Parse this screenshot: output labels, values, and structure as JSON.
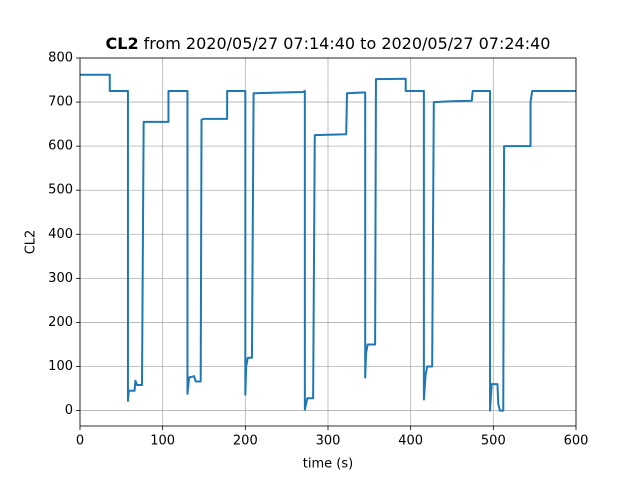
{
  "chart_data": {
    "type": "line",
    "title_bold": "CL2",
    "title": "from 2020/05/27 07:14:40 to 2020/05/27 07:24:40",
    "xlabel": "time (s)",
    "ylabel": "CL2",
    "color": "#1f77b4",
    "grid": true,
    "xlim": [
      0,
      600
    ],
    "ylim": [
      -35,
      800
    ],
    "xticks": [
      0,
      100,
      200,
      300,
      400,
      500,
      600
    ],
    "yticks": [
      0,
      100,
      200,
      300,
      400,
      500,
      600,
      700,
      800
    ],
    "x": [
      0,
      36,
      36,
      58,
      58,
      59,
      66,
      67,
      69,
      75,
      77,
      107,
      107,
      130,
      130,
      132,
      138,
      140,
      146,
      147,
      150,
      178,
      178,
      200,
      200,
      201,
      203,
      208,
      210,
      250,
      270,
      272,
      272,
      275,
      282,
      284,
      322,
      323,
      345,
      345,
      346,
      348,
      357,
      358,
      394,
      394,
      416,
      416,
      418,
      420,
      426,
      428,
      450,
      474,
      475,
      496,
      496,
      498,
      505,
      506,
      508,
      512,
      513,
      545,
      545,
      547,
      600
    ],
    "values": [
      762,
      762,
      725,
      725,
      22,
      45,
      45,
      68,
      58,
      58,
      655,
      655,
      725,
      725,
      38,
      75,
      78,
      66,
      66,
      660,
      662,
      662,
      725,
      725,
      36,
      100,
      120,
      120,
      720,
      722,
      723,
      725,
      2,
      28,
      28,
      625,
      627,
      720,
      722,
      75,
      130,
      150,
      150,
      752,
      753,
      725,
      725,
      25,
      80,
      100,
      100,
      700,
      702,
      703,
      725,
      725,
      0,
      60,
      60,
      15,
      0,
      0,
      600,
      600,
      700,
      725,
      725
    ]
  }
}
